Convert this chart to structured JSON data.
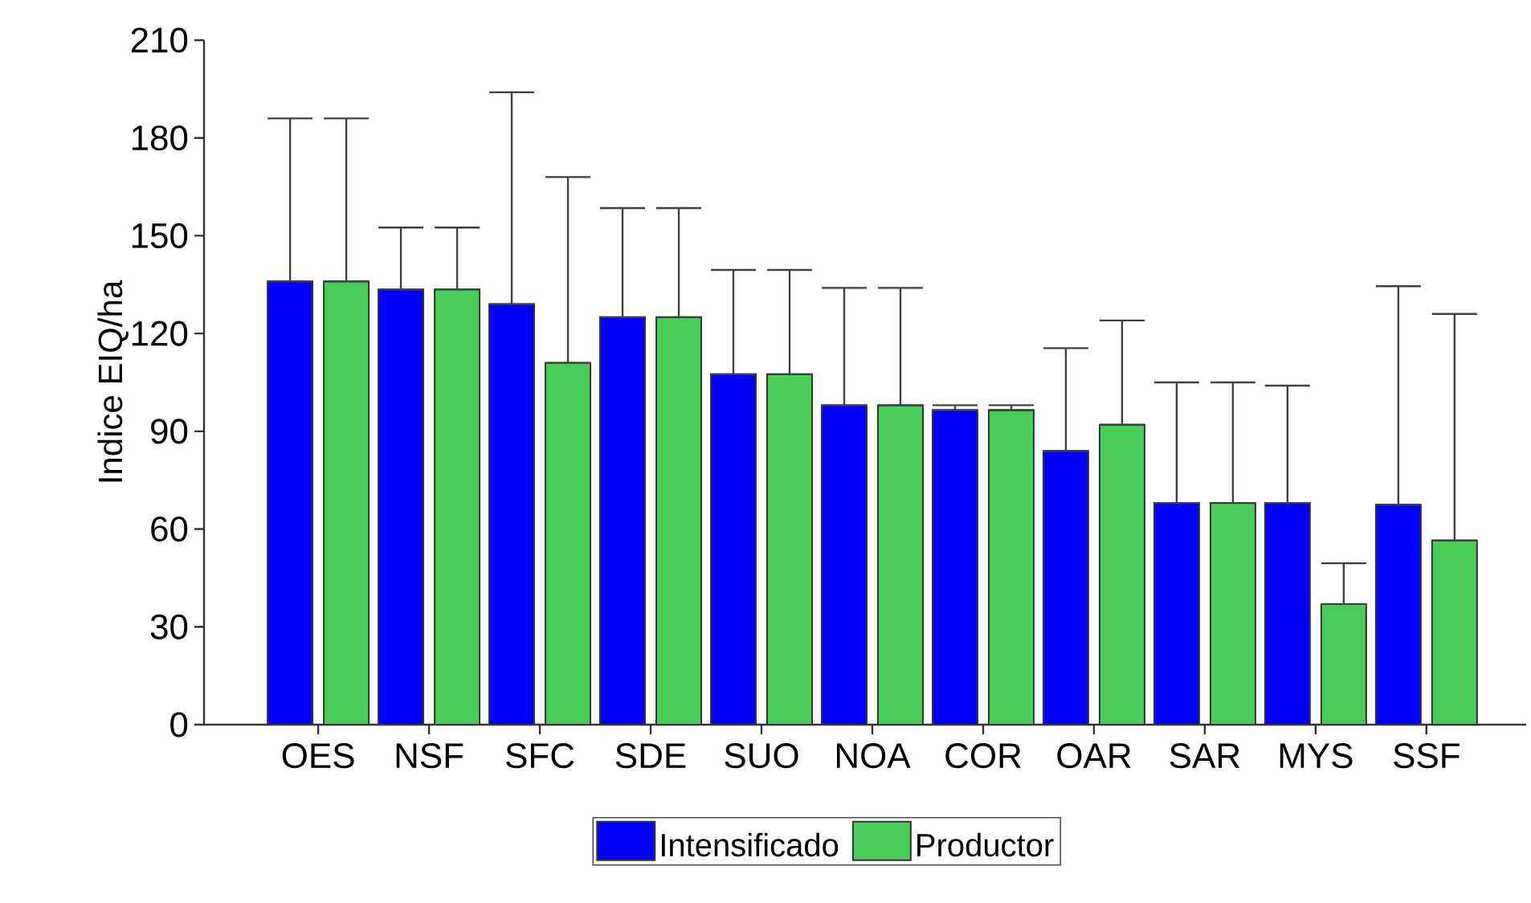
{
  "chart_data": {
    "type": "bar",
    "ylabel": "Indice EIQ/ha",
    "categories": [
      "OES",
      "NSF",
      "SFC",
      "SDE",
      "SUO",
      "NOA",
      "COR",
      "OAR",
      "SAR",
      "MYS",
      "SSF"
    ],
    "series": [
      {
        "name": "Intensificado",
        "color": "#0000ff",
        "values": [
          136,
          133.5,
          129,
          125,
          107.5,
          98,
          96.5,
          84,
          68,
          68,
          67.5
        ],
        "errors": [
          [
            136,
            186
          ],
          [
            133.5,
            152.5
          ],
          [
            129,
            194
          ],
          [
            125,
            158.5
          ],
          [
            107.5,
            139.5
          ],
          [
            98,
            134
          ],
          [
            96.5,
            98
          ],
          [
            84,
            115.5
          ],
          [
            68,
            105
          ],
          [
            68,
            104
          ],
          [
            67.5,
            134.5
          ]
        ]
      },
      {
        "name": "Productor",
        "color": "#48cd5a",
        "values": [
          136,
          133.5,
          111,
          125,
          107.5,
          98,
          96.5,
          92,
          68,
          37,
          56.5
        ],
        "errors": [
          [
            136,
            186
          ],
          [
            133.5,
            152.5
          ],
          [
            111,
            168
          ],
          [
            125,
            158.5
          ],
          [
            107.5,
            139.5
          ],
          [
            98,
            134
          ],
          [
            96.5,
            98
          ],
          [
            92,
            124
          ],
          [
            68,
            105
          ],
          [
            37,
            49.5
          ],
          [
            56.5,
            126
          ]
        ]
      }
    ],
    "ylim": [
      0,
      210
    ],
    "yticks": [
      0,
      30,
      60,
      90,
      120,
      150,
      180,
      210
    ],
    "grid": false,
    "legend": "bottom"
  }
}
